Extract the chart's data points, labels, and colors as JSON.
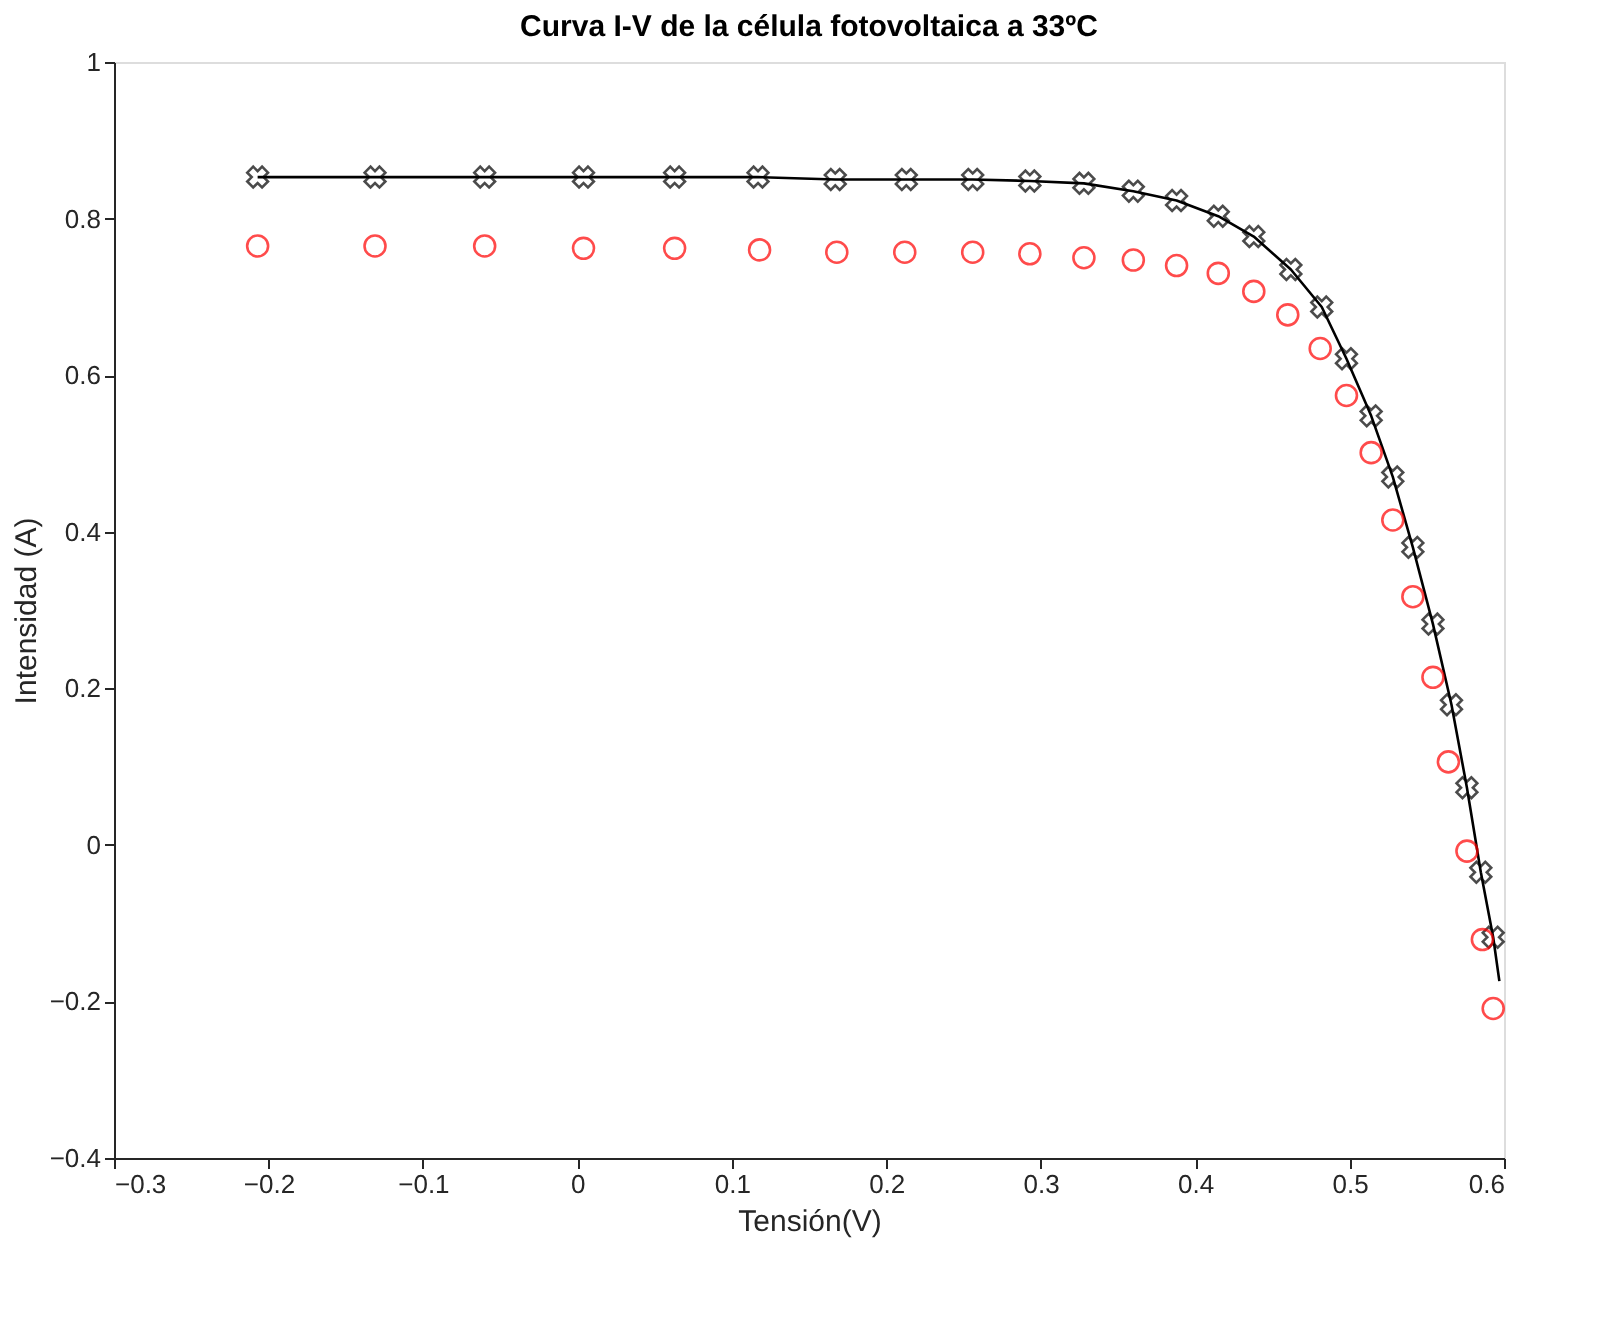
{
  "chart_data": {
    "type": "scatter",
    "title": "Curva I-V de la célula fotovoltaica a 33ºC",
    "xlabel": "Tensión(V)",
    "ylabel": "Intensidad (A)",
    "xlim": [
      -0.3,
      0.6
    ],
    "xticks": [
      -0.3,
      -0.2,
      -0.1,
      0,
      0.1,
      0.2,
      0.3,
      0.4,
      0.5,
      0.6
    ],
    "ylim": [
      -0.4,
      1
    ],
    "yticks": [
      -0.4,
      -0.2,
      0,
      0.2,
      0.4,
      0.6,
      0.8,
      1
    ],
    "grid": false,
    "series": [
      {
        "type": "line",
        "color": "#000000",
        "marker": "none",
        "line_style": "solid",
        "x": [
          -0.207,
          -0.131,
          -0.06,
          0.004,
          0.063,
          0.117,
          0.167,
          0.213,
          0.256,
          0.293,
          0.328,
          0.36,
          0.388,
          0.415,
          0.438,
          0.462,
          0.482,
          0.498,
          0.514,
          0.528,
          0.541,
          0.554,
          0.566,
          0.576,
          0.585,
          0.593,
          0.597
        ],
        "values": [
          0.853,
          0.853,
          0.853,
          0.853,
          0.853,
          0.853,
          0.85,
          0.85,
          0.85,
          0.848,
          0.845,
          0.835,
          0.823,
          0.803,
          0.777,
          0.735,
          0.687,
          0.621,
          0.548,
          0.47,
          0.38,
          0.282,
          0.179,
          0.073,
          -0.035,
          -0.118,
          -0.174
        ]
      },
      {
        "type": "scatter",
        "color": "#000000",
        "marker": "cross",
        "x": [
          -0.207,
          -0.131,
          -0.06,
          0.004,
          0.063,
          0.117,
          0.167,
          0.213,
          0.256,
          0.293,
          0.328,
          0.36,
          0.388,
          0.415,
          0.438,
          0.462,
          0.482,
          0.498,
          0.514,
          0.528,
          0.541,
          0.554,
          0.566,
          0.576,
          0.585,
          0.593
        ],
        "values": [
          0.853,
          0.853,
          0.853,
          0.853,
          0.853,
          0.853,
          0.85,
          0.85,
          0.85,
          0.848,
          0.845,
          0.835,
          0.823,
          0.803,
          0.777,
          0.735,
          0.687,
          0.621,
          0.548,
          0.47,
          0.38,
          0.282,
          0.179,
          0.073,
          -0.035,
          -0.118
        ]
      },
      {
        "type": "scatter",
        "color": "#ff0000",
        "marker": "circle",
        "x": [
          -0.207,
          -0.131,
          -0.06,
          0.004,
          0.063,
          0.118,
          0.168,
          0.212,
          0.256,
          0.293,
          0.328,
          0.36,
          0.388,
          0.415,
          0.438,
          0.46,
          0.481,
          0.498,
          0.514,
          0.528,
          0.541,
          0.554,
          0.564,
          0.576,
          0.586,
          0.593
        ],
        "values": [
          0.765,
          0.765,
          0.765,
          0.762,
          0.762,
          0.76,
          0.757,
          0.757,
          0.757,
          0.755,
          0.75,
          0.747,
          0.74,
          0.73,
          0.707,
          0.677,
          0.634,
          0.574,
          0.501,
          0.415,
          0.317,
          0.214,
          0.106,
          -0.008,
          -0.121,
          -0.209
        ]
      }
    ]
  }
}
